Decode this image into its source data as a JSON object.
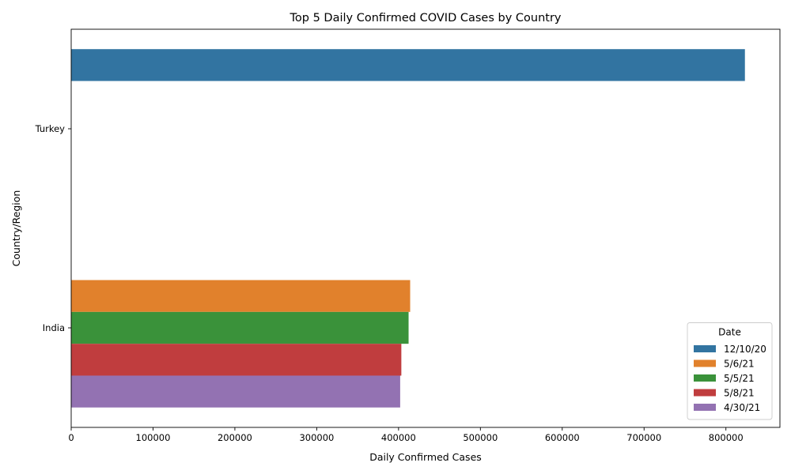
{
  "chart_data": {
    "type": "bar",
    "orientation": "horizontal",
    "title": "Top 5 Daily Confirmed COVID Cases by Country",
    "xlabel": "Daily Confirmed Cases",
    "ylabel": "Country/Region",
    "categories": [
      "Turkey",
      "India"
    ],
    "xlim": [
      0,
      866000
    ],
    "xticks": [
      0,
      100000,
      200000,
      300000,
      400000,
      500000,
      600000,
      700000,
      800000
    ],
    "grid": false,
    "legend": {
      "title": "Date",
      "placement": "lower-right"
    },
    "series": [
      {
        "name": "12/10/20",
        "color": "#3274a1",
        "values": [
          823225,
          null
        ]
      },
      {
        "name": "5/6/21",
        "color": "#e1812c",
        "values": [
          null,
          414188
        ]
      },
      {
        "name": "5/5/21",
        "color": "#3a923a",
        "values": [
          null,
          412262
        ]
      },
      {
        "name": "5/8/21",
        "color": "#c03d3e",
        "values": [
          null,
          403405
        ]
      },
      {
        "name": "4/30/21",
        "color": "#9372b2",
        "values": [
          null,
          401993
        ]
      }
    ]
  }
}
